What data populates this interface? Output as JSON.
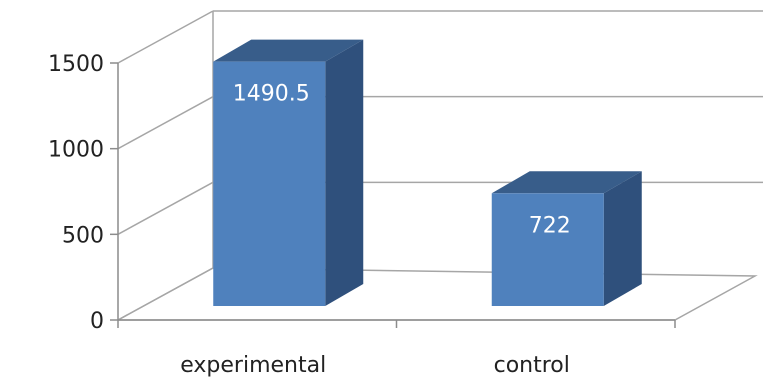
{
  "chart_data": {
    "type": "bar",
    "style": "3d-column",
    "categories": [
      "experimental",
      "control"
    ],
    "values": [
      1490.5,
      722
    ],
    "data_labels": [
      "1490.5",
      "722"
    ],
    "title": "",
    "xlabel": "",
    "ylabel": "",
    "ylim": [
      0,
      1500
    ],
    "yticks": [
      0,
      500,
      1000,
      1500
    ],
    "ytick_labels": [
      "0",
      "500",
      "1000",
      "1500"
    ],
    "grid": true,
    "legend": "none",
    "colors": {
      "bar_front": "#4f81bd",
      "bar_side": "#2f507c",
      "bar_top": "#385d8a",
      "gridline": "#a6a6a6",
      "axis": "#8c8c8c"
    }
  }
}
